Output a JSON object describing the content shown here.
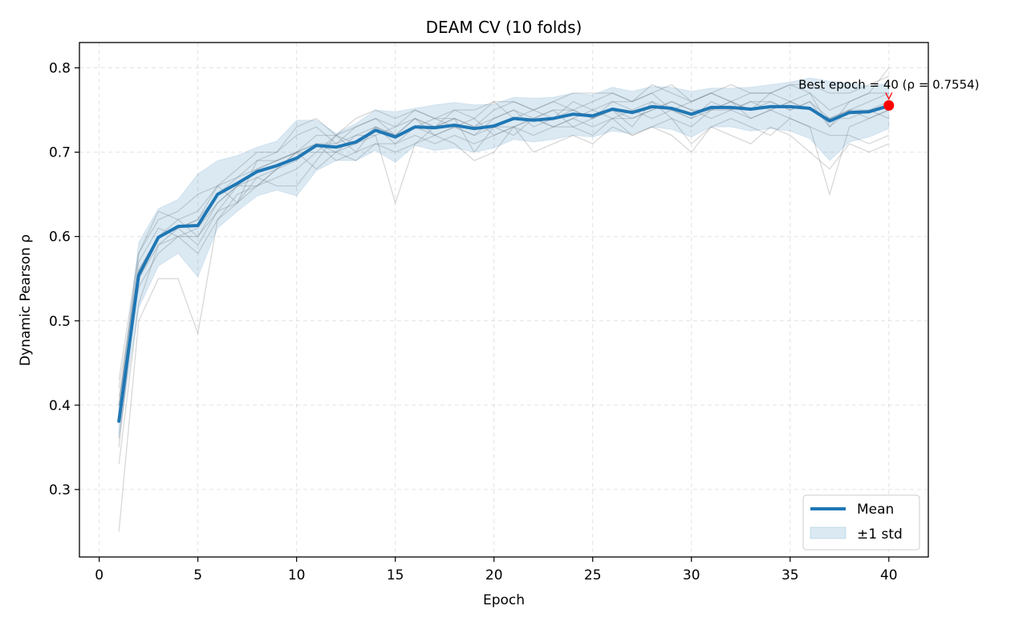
{
  "chart_data": {
    "type": "line",
    "title": "DEAM CV (10 folds)",
    "xlabel": "Epoch",
    "ylabel": "Dynamic Pearson ρ",
    "xlim": [
      -1,
      42
    ],
    "ylim": [
      0.22,
      0.83
    ],
    "xticks": [
      0,
      5,
      10,
      15,
      20,
      25,
      30,
      35,
      40
    ],
    "yticks": [
      0.3,
      0.4,
      0.5,
      0.6,
      0.7,
      0.8
    ],
    "grid": true,
    "legend_position": "lower-right",
    "colors": {
      "mean": "#1f77b4",
      "band": "#1f77b4",
      "folds": "#7f7f7f",
      "best": "#ff0000"
    },
    "x": [
      1,
      2,
      3,
      4,
      5,
      6,
      7,
      8,
      9,
      10,
      11,
      12,
      13,
      14,
      15,
      16,
      17,
      18,
      19,
      20,
      21,
      22,
      23,
      24,
      25,
      26,
      27,
      28,
      29,
      30,
      31,
      32,
      33,
      34,
      35,
      36,
      37,
      38,
      39,
      40
    ],
    "series": [
      {
        "name": "Mean",
        "values": [
          0.381,
          0.554,
          0.599,
          0.612,
          0.613,
          0.65,
          0.663,
          0.677,
          0.684,
          0.693,
          0.708,
          0.706,
          0.712,
          0.726,
          0.718,
          0.73,
          0.729,
          0.732,
          0.728,
          0.731,
          0.74,
          0.738,
          0.74,
          0.745,
          0.743,
          0.751,
          0.747,
          0.754,
          0.752,
          0.745,
          0.753,
          0.753,
          0.751,
          0.754,
          0.754,
          0.752,
          0.737,
          0.747,
          0.748,
          0.755
        ]
      },
      {
        "name": "±1 std",
        "lower": [
          0.362,
          0.515,
          0.565,
          0.58,
          0.552,
          0.61,
          0.63,
          0.648,
          0.655,
          0.648,
          0.678,
          0.69,
          0.69,
          0.702,
          0.688,
          0.708,
          0.702,
          0.705,
          0.7,
          0.705,
          0.715,
          0.712,
          0.715,
          0.72,
          0.718,
          0.725,
          0.722,
          0.73,
          0.727,
          0.718,
          0.73,
          0.73,
          0.725,
          0.728,
          0.725,
          0.716,
          0.69,
          0.712,
          0.718,
          0.728
        ],
        "upper": [
          0.4,
          0.593,
          0.633,
          0.644,
          0.674,
          0.69,
          0.696,
          0.706,
          0.713,
          0.738,
          0.738,
          0.722,
          0.734,
          0.75,
          0.748,
          0.752,
          0.756,
          0.759,
          0.756,
          0.757,
          0.765,
          0.764,
          0.765,
          0.77,
          0.768,
          0.777,
          0.772,
          0.778,
          0.777,
          0.772,
          0.776,
          0.776,
          0.777,
          0.78,
          0.783,
          0.788,
          0.784,
          0.782,
          0.778,
          0.782
        ]
      }
    ],
    "folds": [
      [
        0.25,
        0.5,
        0.55,
        0.55,
        0.485,
        0.62,
        0.64,
        0.66,
        0.68,
        0.69,
        0.71,
        0.7,
        0.72,
        0.73,
        0.71,
        0.73,
        0.74,
        0.73,
        0.72,
        0.74,
        0.75,
        0.73,
        0.74,
        0.75,
        0.74,
        0.76,
        0.75,
        0.76,
        0.75,
        0.74,
        0.76,
        0.75,
        0.76,
        0.76,
        0.75,
        0.76,
        0.73,
        0.75,
        0.75,
        0.76
      ],
      [
        0.33,
        0.52,
        0.59,
        0.6,
        0.6,
        0.64,
        0.66,
        0.68,
        0.69,
        0.7,
        0.71,
        0.69,
        0.7,
        0.73,
        0.72,
        0.74,
        0.72,
        0.73,
        0.74,
        0.72,
        0.73,
        0.74,
        0.73,
        0.74,
        0.75,
        0.74,
        0.74,
        0.75,
        0.76,
        0.75,
        0.74,
        0.75,
        0.74,
        0.75,
        0.76,
        0.75,
        0.74,
        0.74,
        0.75,
        0.74
      ],
      [
        0.4,
        0.58,
        0.62,
        0.63,
        0.65,
        0.66,
        0.64,
        0.67,
        0.66,
        0.66,
        0.69,
        0.72,
        0.7,
        0.71,
        0.7,
        0.71,
        0.73,
        0.74,
        0.7,
        0.73,
        0.72,
        0.74,
        0.75,
        0.73,
        0.74,
        0.75,
        0.73,
        0.76,
        0.74,
        0.73,
        0.75,
        0.76,
        0.74,
        0.75,
        0.74,
        0.73,
        0.65,
        0.73,
        0.74,
        0.75
      ],
      [
        0.42,
        0.56,
        0.6,
        0.61,
        0.62,
        0.66,
        0.68,
        0.7,
        0.7,
        0.72,
        0.73,
        0.71,
        0.73,
        0.74,
        0.73,
        0.75,
        0.74,
        0.74,
        0.73,
        0.75,
        0.76,
        0.75,
        0.74,
        0.76,
        0.75,
        0.76,
        0.76,
        0.77,
        0.75,
        0.76,
        0.77,
        0.76,
        0.75,
        0.77,
        0.76,
        0.77,
        0.75,
        0.76,
        0.77,
        0.77
      ],
      [
        0.38,
        0.55,
        0.6,
        0.62,
        0.63,
        0.66,
        0.67,
        0.68,
        0.69,
        0.7,
        0.72,
        0.72,
        0.71,
        0.72,
        0.64,
        0.71,
        0.72,
        0.71,
        0.69,
        0.7,
        0.73,
        0.7,
        0.71,
        0.72,
        0.71,
        0.73,
        0.72,
        0.73,
        0.74,
        0.71,
        0.73,
        0.74,
        0.73,
        0.72,
        0.74,
        0.73,
        0.72,
        0.72,
        0.71,
        0.72
      ],
      [
        0.41,
        0.54,
        0.58,
        0.6,
        0.61,
        0.64,
        0.66,
        0.66,
        0.67,
        0.68,
        0.7,
        0.7,
        0.69,
        0.71,
        0.71,
        0.72,
        0.71,
        0.72,
        0.71,
        0.72,
        0.73,
        0.72,
        0.73,
        0.73,
        0.72,
        0.74,
        0.72,
        0.73,
        0.72,
        0.7,
        0.73,
        0.72,
        0.71,
        0.73,
        0.72,
        0.7,
        0.68,
        0.71,
        0.7,
        0.71
      ],
      [
        0.43,
        0.58,
        0.63,
        0.62,
        0.6,
        0.63,
        0.64,
        0.69,
        0.7,
        0.73,
        0.74,
        0.72,
        0.74,
        0.75,
        0.74,
        0.75,
        0.74,
        0.75,
        0.75,
        0.76,
        0.76,
        0.75,
        0.76,
        0.77,
        0.77,
        0.77,
        0.76,
        0.78,
        0.77,
        0.76,
        0.77,
        0.78,
        0.77,
        0.77,
        0.78,
        0.78,
        0.77,
        0.77,
        0.78,
        0.79
      ],
      [
        0.4,
        0.57,
        0.61,
        0.6,
        0.58,
        0.62,
        0.65,
        0.66,
        0.68,
        0.7,
        0.68,
        0.7,
        0.71,
        0.73,
        0.72,
        0.73,
        0.72,
        0.73,
        0.72,
        0.73,
        0.73,
        0.74,
        0.73,
        0.74,
        0.73,
        0.74,
        0.75,
        0.74,
        0.75,
        0.74,
        0.75,
        0.75,
        0.76,
        0.75,
        0.76,
        0.75,
        0.74,
        0.75,
        0.74,
        0.75
      ],
      [
        0.35,
        0.56,
        0.6,
        0.61,
        0.62,
        0.65,
        0.67,
        0.69,
        0.69,
        0.7,
        0.71,
        0.71,
        0.72,
        0.72,
        0.73,
        0.74,
        0.73,
        0.74,
        0.73,
        0.74,
        0.75,
        0.74,
        0.75,
        0.75,
        0.74,
        0.75,
        0.74,
        0.75,
        0.76,
        0.75,
        0.75,
        0.76,
        0.75,
        0.76,
        0.75,
        0.76,
        0.74,
        0.75,
        0.76,
        0.77
      ],
      [
        0.36,
        0.55,
        0.59,
        0.61,
        0.59,
        0.63,
        0.66,
        0.67,
        0.68,
        0.7,
        0.7,
        0.72,
        0.73,
        0.74,
        0.72,
        0.74,
        0.73,
        0.75,
        0.74,
        0.76,
        0.74,
        0.75,
        0.76,
        0.75,
        0.76,
        0.77,
        0.76,
        0.77,
        0.78,
        0.76,
        0.77,
        0.76,
        0.77,
        0.77,
        0.78,
        0.77,
        0.73,
        0.76,
        0.77,
        0.8
      ]
    ],
    "annotation": {
      "text": "Best epoch = 40 (ρ = 0.7554)",
      "x": 40,
      "y": 0.7554
    },
    "legend": [
      {
        "label": "Mean",
        "kind": "line"
      },
      {
        "label": "±1 std",
        "kind": "patch"
      }
    ]
  }
}
